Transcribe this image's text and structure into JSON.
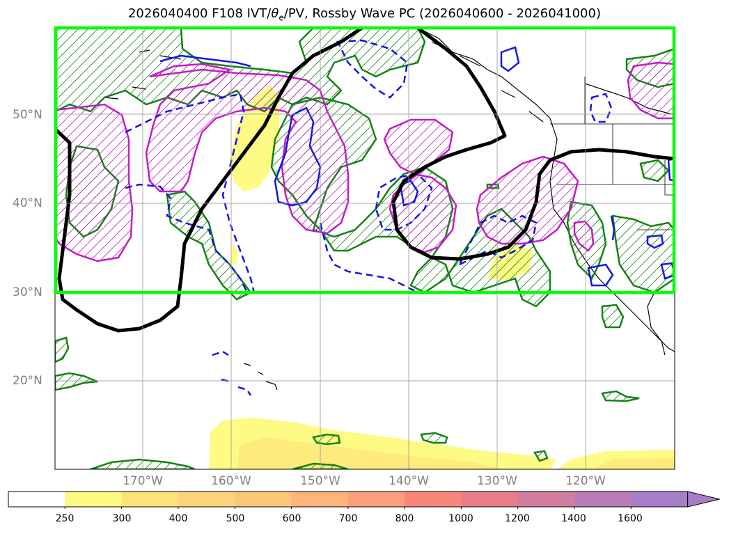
{
  "title_main": "2026040400 F108 IVT/",
  "title_theta": "θ",
  "title_sub": "e",
  "title_rest": "/PV, Rossby Wave PC (2026040600 - 2026041000)",
  "lat_labels": [
    "50°N",
    "40°N",
    "30°N",
    "20°N"
  ],
  "lon_labels": [
    "170°W",
    "160°W",
    "150°W",
    "140°W",
    "130°W",
    "120°W"
  ],
  "colorbar": {
    "ticks": [
      "250",
      "300",
      "400",
      "500",
      "600",
      "700",
      "800",
      "1000",
      "1200",
      "1400",
      "1600"
    ],
    "colors": [
      "#ffffff",
      "#fdfb83",
      "#fde27a",
      "#fdd27a",
      "#fdc77a",
      "#fdb57a",
      "#fc9f7a",
      "#f9867a",
      "#e97d8a",
      "#d07d9f",
      "#b97db6",
      "#a67ec7"
    ]
  },
  "colors": {
    "region_box": "#00ff00",
    "contour_green": "#148214",
    "contour_magenta": "#c41cc4",
    "contour_blue": "#1414e6",
    "rossby_line": "#000000"
  }
}
